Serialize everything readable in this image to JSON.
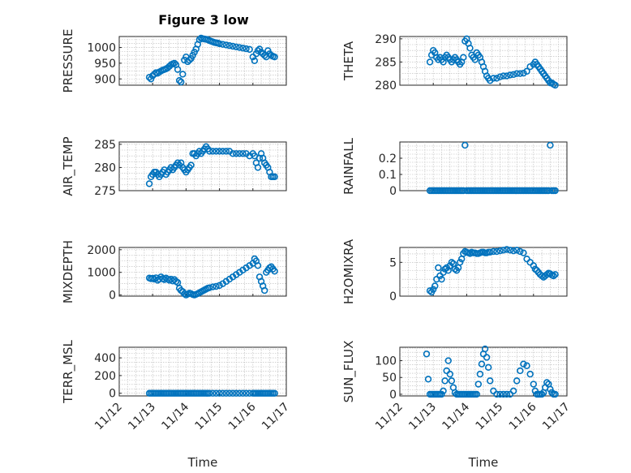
{
  "figure_title": "Figure 3 low",
  "marker_color": "#0072BD",
  "chart_data": [
    {
      "type": "scatter",
      "ylabel": "PRESSURE",
      "yticks": [
        900,
        950,
        1000
      ],
      "ylim": [
        880,
        1035
      ],
      "xlabel": "",
      "show_xticks": false,
      "x": [
        12.9,
        12.95,
        13.0,
        13.05,
        13.1,
        13.15,
        13.2,
        13.25,
        13.3,
        13.35,
        13.4,
        13.45,
        13.5,
        13.55,
        13.6,
        13.65,
        13.7,
        13.75,
        13.8,
        13.85,
        13.9,
        13.95,
        14.0,
        14.05,
        14.1,
        14.15,
        14.2,
        14.25,
        14.3,
        14.35,
        14.4,
        14.45,
        14.5,
        14.55,
        14.6,
        14.65,
        14.7,
        14.75,
        14.8,
        14.85,
        14.9,
        14.95,
        15.0,
        15.1,
        15.2,
        15.3,
        15.4,
        15.5,
        15.6,
        15.7,
        15.8,
        15.9,
        16.0,
        16.05,
        16.1,
        16.15,
        16.2,
        16.25,
        16.3,
        16.35,
        16.4,
        16.45,
        16.5,
        16.55,
        16.6,
        16.65
      ],
      "y": [
        905,
        900,
        910,
        915,
        920,
        918,
        922,
        925,
        928,
        930,
        932,
        935,
        940,
        945,
        948,
        950,
        945,
        930,
        895,
        890,
        915,
        960,
        970,
        955,
        960,
        965,
        975,
        985,
        995,
        1010,
        1025,
        1030,
        1028,
        1027,
        1026,
        1025,
        1022,
        1020,
        1018,
        1016,
        1015,
        1014,
        1012,
        1010,
        1008,
        1006,
        1004,
        1002,
        1000,
        998,
        996,
        994,
        970,
        958,
        980,
        990,
        995,
        985,
        980,
        975,
        970,
        990,
        980,
        975,
        972,
        970
      ]
    },
    {
      "type": "scatter",
      "ylabel": "THETA",
      "yticks": [
        280,
        285,
        290
      ],
      "ylim": [
        280,
        290.5
      ],
      "xlabel": "",
      "show_xticks": false,
      "x": [
        12.9,
        12.95,
        13.0,
        13.05,
        13.1,
        13.15,
        13.2,
        13.25,
        13.3,
        13.35,
        13.4,
        13.45,
        13.5,
        13.55,
        13.6,
        13.65,
        13.7,
        13.75,
        13.8,
        13.85,
        13.9,
        13.95,
        14.0,
        14.05,
        14.1,
        14.15,
        14.2,
        14.25,
        14.3,
        14.35,
        14.4,
        14.45,
        14.5,
        14.55,
        14.6,
        14.65,
        14.7,
        14.8,
        14.9,
        15.0,
        15.1,
        15.2,
        15.3,
        15.4,
        15.5,
        15.6,
        15.7,
        15.8,
        15.9,
        16.0,
        16.05,
        16.1,
        16.15,
        16.2,
        16.25,
        16.3,
        16.35,
        16.4,
        16.45,
        16.5,
        16.55,
        16.6,
        16.65
      ],
      "y": [
        285,
        286.5,
        287.5,
        287,
        286,
        285.5,
        286,
        285.5,
        285,
        286,
        286.5,
        286,
        285.5,
        285,
        285.5,
        286,
        285.5,
        285,
        284.5,
        285,
        286,
        289.5,
        290,
        289,
        288,
        286.5,
        286,
        285.5,
        287,
        286.5,
        286,
        285,
        284,
        283,
        282,
        281.5,
        281,
        281.5,
        281.5,
        281.8,
        282,
        282,
        282.2,
        282.3,
        282.5,
        282.5,
        282.6,
        283,
        284,
        284.5,
        285,
        284.5,
        284,
        283.5,
        283,
        282.5,
        282,
        281.5,
        281,
        280.5,
        280.5,
        280.2,
        280
      ]
    },
    {
      "type": "scatter",
      "ylabel": "AIR_TEMP",
      "yticks": [
        275,
        280,
        285
      ],
      "ylim": [
        275,
        285.5
      ],
      "xlabel": "",
      "show_xticks": false,
      "x": [
        12.9,
        12.95,
        13.0,
        13.05,
        13.1,
        13.15,
        13.2,
        13.25,
        13.3,
        13.35,
        13.4,
        13.45,
        13.5,
        13.55,
        13.6,
        13.65,
        13.7,
        13.75,
        13.8,
        13.85,
        13.9,
        13.95,
        14.0,
        14.05,
        14.1,
        14.15,
        14.2,
        14.25,
        14.3,
        14.35,
        14.4,
        14.45,
        14.5,
        14.55,
        14.6,
        14.65,
        14.7,
        14.8,
        14.9,
        15.0,
        15.1,
        15.2,
        15.3,
        15.4,
        15.5,
        15.6,
        15.7,
        15.8,
        15.9,
        16.0,
        16.05,
        16.1,
        16.15,
        16.2,
        16.25,
        16.3,
        16.35,
        16.4,
        16.45,
        16.5,
        16.55,
        16.6,
        16.65
      ],
      "y": [
        276.5,
        278,
        278.5,
        279,
        279,
        278.5,
        278,
        278.5,
        279,
        279.5,
        278.5,
        279,
        279.5,
        280,
        279.5,
        280,
        280.5,
        281,
        280.5,
        281,
        280,
        279.5,
        279,
        279.5,
        280,
        280.5,
        283,
        283,
        282.5,
        283,
        283.5,
        283,
        283.5,
        284,
        284.5,
        284,
        283.5,
        283.5,
        283.5,
        283.5,
        283.5,
        283.5,
        283.5,
        283,
        283,
        283,
        283,
        283,
        282.5,
        283,
        282.5,
        281,
        280,
        282,
        283,
        282,
        281,
        280.5,
        280,
        279,
        278,
        278,
        278
      ]
    },
    {
      "type": "scatter",
      "ylabel": "RAINFALL",
      "yticks": [
        0,
        0.1,
        0.2
      ],
      "ylim": [
        0,
        0.3
      ],
      "xlabel": "",
      "show_xticks": false,
      "x": [
        12.9,
        12.95,
        13.0,
        13.05,
        13.1,
        13.15,
        13.2,
        13.25,
        13.3,
        13.35,
        13.4,
        13.45,
        13.5,
        13.55,
        13.6,
        13.65,
        13.7,
        13.75,
        13.8,
        13.85,
        13.9,
        13.95,
        14.0,
        14.05,
        14.1,
        14.15,
        14.2,
        14.25,
        14.3,
        14.35,
        14.4,
        14.45,
        14.5,
        14.55,
        14.6,
        14.65,
        14.7,
        14.75,
        14.8,
        14.85,
        14.9,
        14.95,
        15.0,
        15.05,
        15.1,
        15.15,
        15.2,
        15.25,
        15.3,
        15.35,
        15.4,
        15.45,
        15.5,
        15.55,
        15.6,
        15.65,
        15.7,
        15.75,
        15.8,
        15.85,
        15.9,
        15.95,
        16.0,
        16.05,
        16.1,
        16.15,
        16.2,
        16.25,
        16.3,
        16.35,
        16.4,
        16.45,
        16.5,
        16.55,
        16.6,
        16.65
      ],
      "y": [
        0,
        0,
        0,
        0,
        0,
        0,
        0,
        0,
        0,
        0,
        0,
        0,
        0,
        0,
        0,
        0,
        0,
        0,
        0,
        0,
        0,
        0.28,
        0,
        0,
        0,
        0,
        0,
        0,
        0,
        0,
        0,
        0,
        0,
        0,
        0,
        0,
        0,
        0,
        0,
        0,
        0,
        0,
        0,
        0,
        0,
        0,
        0,
        0,
        0,
        0,
        0,
        0,
        0,
        0,
        0,
        0,
        0,
        0,
        0,
        0,
        0,
        0,
        0,
        0,
        0,
        0,
        0,
        0,
        0,
        0,
        0,
        0,
        0.28,
        0,
        0,
        0
      ]
    },
    {
      "type": "scatter",
      "ylabel": "MIXDEPTH",
      "yticks": [
        0,
        1000,
        2000
      ],
      "ylim": [
        -50,
        2100
      ],
      "xlabel": "",
      "show_xticks": false,
      "x": [
        12.9,
        12.95,
        13.0,
        13.05,
        13.1,
        13.15,
        13.2,
        13.25,
        13.3,
        13.35,
        13.4,
        13.45,
        13.5,
        13.55,
        13.6,
        13.65,
        13.7,
        13.75,
        13.8,
        13.85,
        13.9,
        13.95,
        14.0,
        14.05,
        14.1,
        14.15,
        14.2,
        14.25,
        14.3,
        14.35,
        14.4,
        14.45,
        14.5,
        14.55,
        14.6,
        14.65,
        14.7,
        14.8,
        14.9,
        15.0,
        15.1,
        15.2,
        15.3,
        15.4,
        15.5,
        15.6,
        15.7,
        15.8,
        15.9,
        16.0,
        16.05,
        16.1,
        16.15,
        16.2,
        16.25,
        16.3,
        16.35,
        16.4,
        16.45,
        16.5,
        16.55,
        16.6,
        16.65
      ],
      "y": [
        750,
        720,
        740,
        700,
        760,
        650,
        700,
        800,
        720,
        680,
        750,
        700,
        650,
        700,
        620,
        680,
        600,
        550,
        300,
        200,
        150,
        50,
        0,
        40,
        80,
        60,
        20,
        0,
        30,
        60,
        100,
        140,
        180,
        220,
        260,
        300,
        320,
        360,
        380,
        420,
        500,
        600,
        700,
        800,
        900,
        1000,
        1100,
        1200,
        1300,
        1400,
        1600,
        1500,
        1300,
        800,
        600,
        400,
        200,
        1000,
        1100,
        1200,
        1250,
        1150,
        1050
      ]
    },
    {
      "type": "scatter",
      "ylabel": "H2OMIXRA",
      "yticks": [
        0,
        5
      ],
      "ylim": [
        0,
        7.2
      ],
      "xlabel": "",
      "show_xticks": false,
      "x": [
        12.9,
        12.95,
        13.0,
        13.05,
        13.1,
        13.15,
        13.2,
        13.25,
        13.3,
        13.35,
        13.4,
        13.45,
        13.5,
        13.55,
        13.6,
        13.65,
        13.7,
        13.75,
        13.8,
        13.85,
        13.9,
        13.95,
        14.0,
        14.05,
        14.1,
        14.15,
        14.2,
        14.25,
        14.3,
        14.35,
        14.4,
        14.45,
        14.5,
        14.55,
        14.6,
        14.65,
        14.7,
        14.8,
        14.9,
        15.0,
        15.1,
        15.2,
        15.3,
        15.4,
        15.5,
        15.6,
        15.7,
        15.8,
        15.9,
        16.0,
        16.05,
        16.1,
        16.15,
        16.2,
        16.25,
        16.3,
        16.35,
        16.4,
        16.45,
        16.5,
        16.55,
        16.6,
        16.65
      ],
      "y": [
        0.8,
        0.6,
        1,
        1.5,
        2.5,
        4.2,
        3,
        2.5,
        3.5,
        4,
        4.2,
        3.8,
        4.5,
        5,
        4.8,
        4,
        3.8,
        4.2,
        5,
        5.5,
        6.3,
        6.6,
        6.5,
        6.4,
        6.3,
        6.5,
        6.4,
        6.4,
        6.3,
        6.3,
        6.4,
        6.5,
        6.5,
        6.4,
        6.4,
        6.5,
        6.5,
        6.6,
        6.6,
        6.7,
        6.8,
        6.9,
        6.8,
        6.7,
        6.8,
        6.6,
        6.4,
        5.5,
        5,
        4.5,
        4,
        3.8,
        3.5,
        3.2,
        3,
        2.8,
        3,
        3.2,
        3.4,
        3.3,
        3.1,
        3,
        3.2
      ]
    },
    {
      "type": "scatter",
      "ylabel": "TERR_MSL",
      "yticks": [
        0,
        200,
        400
      ],
      "ylim": [
        -30,
        520
      ],
      "xlabel": "Time",
      "xticks": [
        "11/12",
        "11/13",
        "11/14",
        "11/15",
        "11/16",
        "11/17"
      ],
      "show_xticks": true,
      "x": [
        12.9,
        12.95,
        13.0,
        13.05,
        13.1,
        13.15,
        13.2,
        13.25,
        13.3,
        13.35,
        13.4,
        13.45,
        13.5,
        13.55,
        13.6,
        13.65,
        13.7,
        13.75,
        13.8,
        13.85,
        13.9,
        13.95,
        14.0,
        14.05,
        14.1,
        14.15,
        14.2,
        14.25,
        14.3,
        14.35,
        14.4,
        14.45,
        14.5,
        14.55,
        14.6,
        14.65,
        14.7,
        14.8,
        14.9,
        15.0,
        15.1,
        15.2,
        15.3,
        15.4,
        15.5,
        15.6,
        15.7,
        15.8,
        15.9,
        16.0,
        16.05,
        16.1,
        16.15,
        16.2,
        16.25,
        16.3,
        16.35,
        16.4,
        16.45,
        16.5,
        16.55,
        16.6,
        16.65
      ],
      "y": [
        0,
        0,
        0,
        0,
        0,
        0,
        0,
        0,
        0,
        0,
        0,
        0,
        0,
        0,
        0,
        0,
        0,
        0,
        0,
        0,
        0,
        0,
        0,
        0,
        0,
        0,
        0,
        0,
        0,
        0,
        0,
        0,
        0,
        0,
        0,
        0,
        0,
        0,
        0,
        0,
        0,
        0,
        0,
        0,
        0,
        0,
        0,
        0,
        0,
        0,
        0,
        0,
        0,
        0,
        0,
        0,
        0,
        0,
        0,
        0,
        0,
        0,
        0
      ]
    },
    {
      "type": "scatter",
      "ylabel": "SUN_FLUX",
      "yticks": [
        0,
        50,
        100
      ],
      "ylim": [
        -5,
        140
      ],
      "xlabel": "Time",
      "xticks": [
        "11/12",
        "11/13",
        "11/14",
        "11/15",
        "11/16",
        "11/17"
      ],
      "show_xticks": true,
      "x": [
        12.8,
        12.85,
        12.9,
        12.95,
        13.0,
        13.05,
        13.1,
        13.15,
        13.2,
        13.25,
        13.3,
        13.35,
        13.4,
        13.45,
        13.5,
        13.55,
        13.6,
        13.65,
        13.7,
        13.75,
        13.8,
        13.85,
        13.9,
        13.95,
        14.0,
        14.05,
        14.1,
        14.15,
        14.2,
        14.25,
        14.3,
        14.35,
        14.4,
        14.45,
        14.5,
        14.55,
        14.6,
        14.65,
        14.7,
        14.8,
        14.9,
        15.0,
        15.1,
        15.2,
        15.3,
        15.4,
        15.5,
        15.6,
        15.7,
        15.8,
        15.9,
        16.0,
        16.05,
        16.1,
        16.15,
        16.2,
        16.25,
        16.3,
        16.35,
        16.4,
        16.45,
        16.5,
        16.55,
        16.6,
        16.65
      ],
      "y": [
        120,
        45,
        0,
        0,
        0,
        0,
        0,
        0,
        0,
        0,
        10,
        40,
        70,
        100,
        60,
        40,
        20,
        5,
        0,
        0,
        0,
        0,
        0,
        0,
        0,
        0,
        0,
        0,
        0,
        0,
        0,
        30,
        60,
        90,
        120,
        135,
        110,
        80,
        40,
        10,
        0,
        0,
        0,
        0,
        0,
        10,
        40,
        70,
        90,
        85,
        60,
        30,
        10,
        0,
        0,
        0,
        0,
        5,
        20,
        35,
        30,
        15,
        5,
        0,
        0
      ]
    }
  ]
}
